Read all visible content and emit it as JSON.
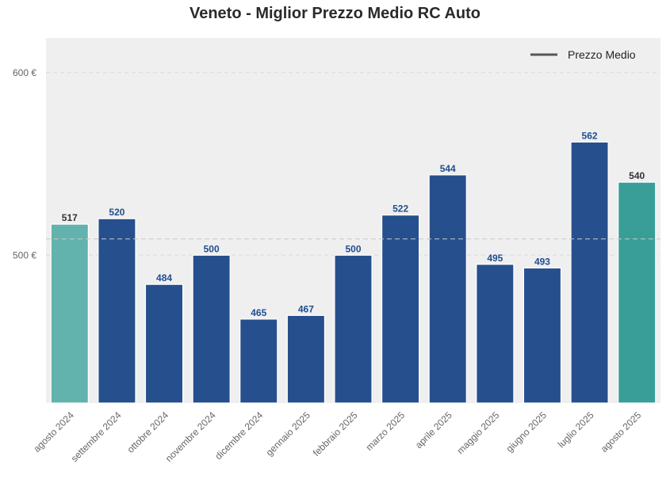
{
  "chart_data": {
    "type": "bar",
    "title": "Veneto - Miglior Prezzo Medio RC Auto",
    "xlabel": "",
    "ylabel": "",
    "categories": [
      "agosto 2024",
      "settembre 2024",
      "ottobre 2024",
      "novembre 2024",
      "dicembre 2024",
      "gennaio 2025",
      "febbraio 2025",
      "marzo 2025",
      "aprile 2025",
      "maggio 2025",
      "giugno 2025",
      "luglio 2025",
      "agosto 2025"
    ],
    "values": [
      517,
      520,
      484,
      500,
      465,
      467,
      500,
      522,
      544,
      495,
      493,
      562,
      540
    ],
    "value_labels": [
      "517",
      "520",
      "484",
      "500",
      "465",
      "467",
      "500",
      "522",
      "544",
      "495",
      "493",
      "562",
      "540"
    ],
    "bar_colors": [
      "#62b2ad",
      "#264f8d",
      "#264f8d",
      "#264f8d",
      "#264f8d",
      "#264f8d",
      "#264f8d",
      "#264f8d",
      "#264f8d",
      "#264f8d",
      "#264f8d",
      "#264f8d",
      "#3a9e98"
    ],
    "label_colors": [
      "#333333",
      "#1f4e8f",
      "#1f4e8f",
      "#1f4e8f",
      "#1f4e8f",
      "#1f4e8f",
      "#1f4e8f",
      "#1f4e8f",
      "#1f4e8f",
      "#1f4e8f",
      "#1f4e8f",
      "#1f4e8f",
      "#333333"
    ],
    "yticks": [
      500,
      600
    ],
    "ytick_labels": [
      "500 €",
      "600 €"
    ],
    "ylim": [
      419,
      619
    ],
    "reference_line": {
      "name": "Prezzo Medio",
      "value": 508.9,
      "color": "#555555"
    },
    "legend": {
      "position": "top-right",
      "label": "Prezzo Medio"
    },
    "grid": true,
    "background": "#efefef"
  }
}
